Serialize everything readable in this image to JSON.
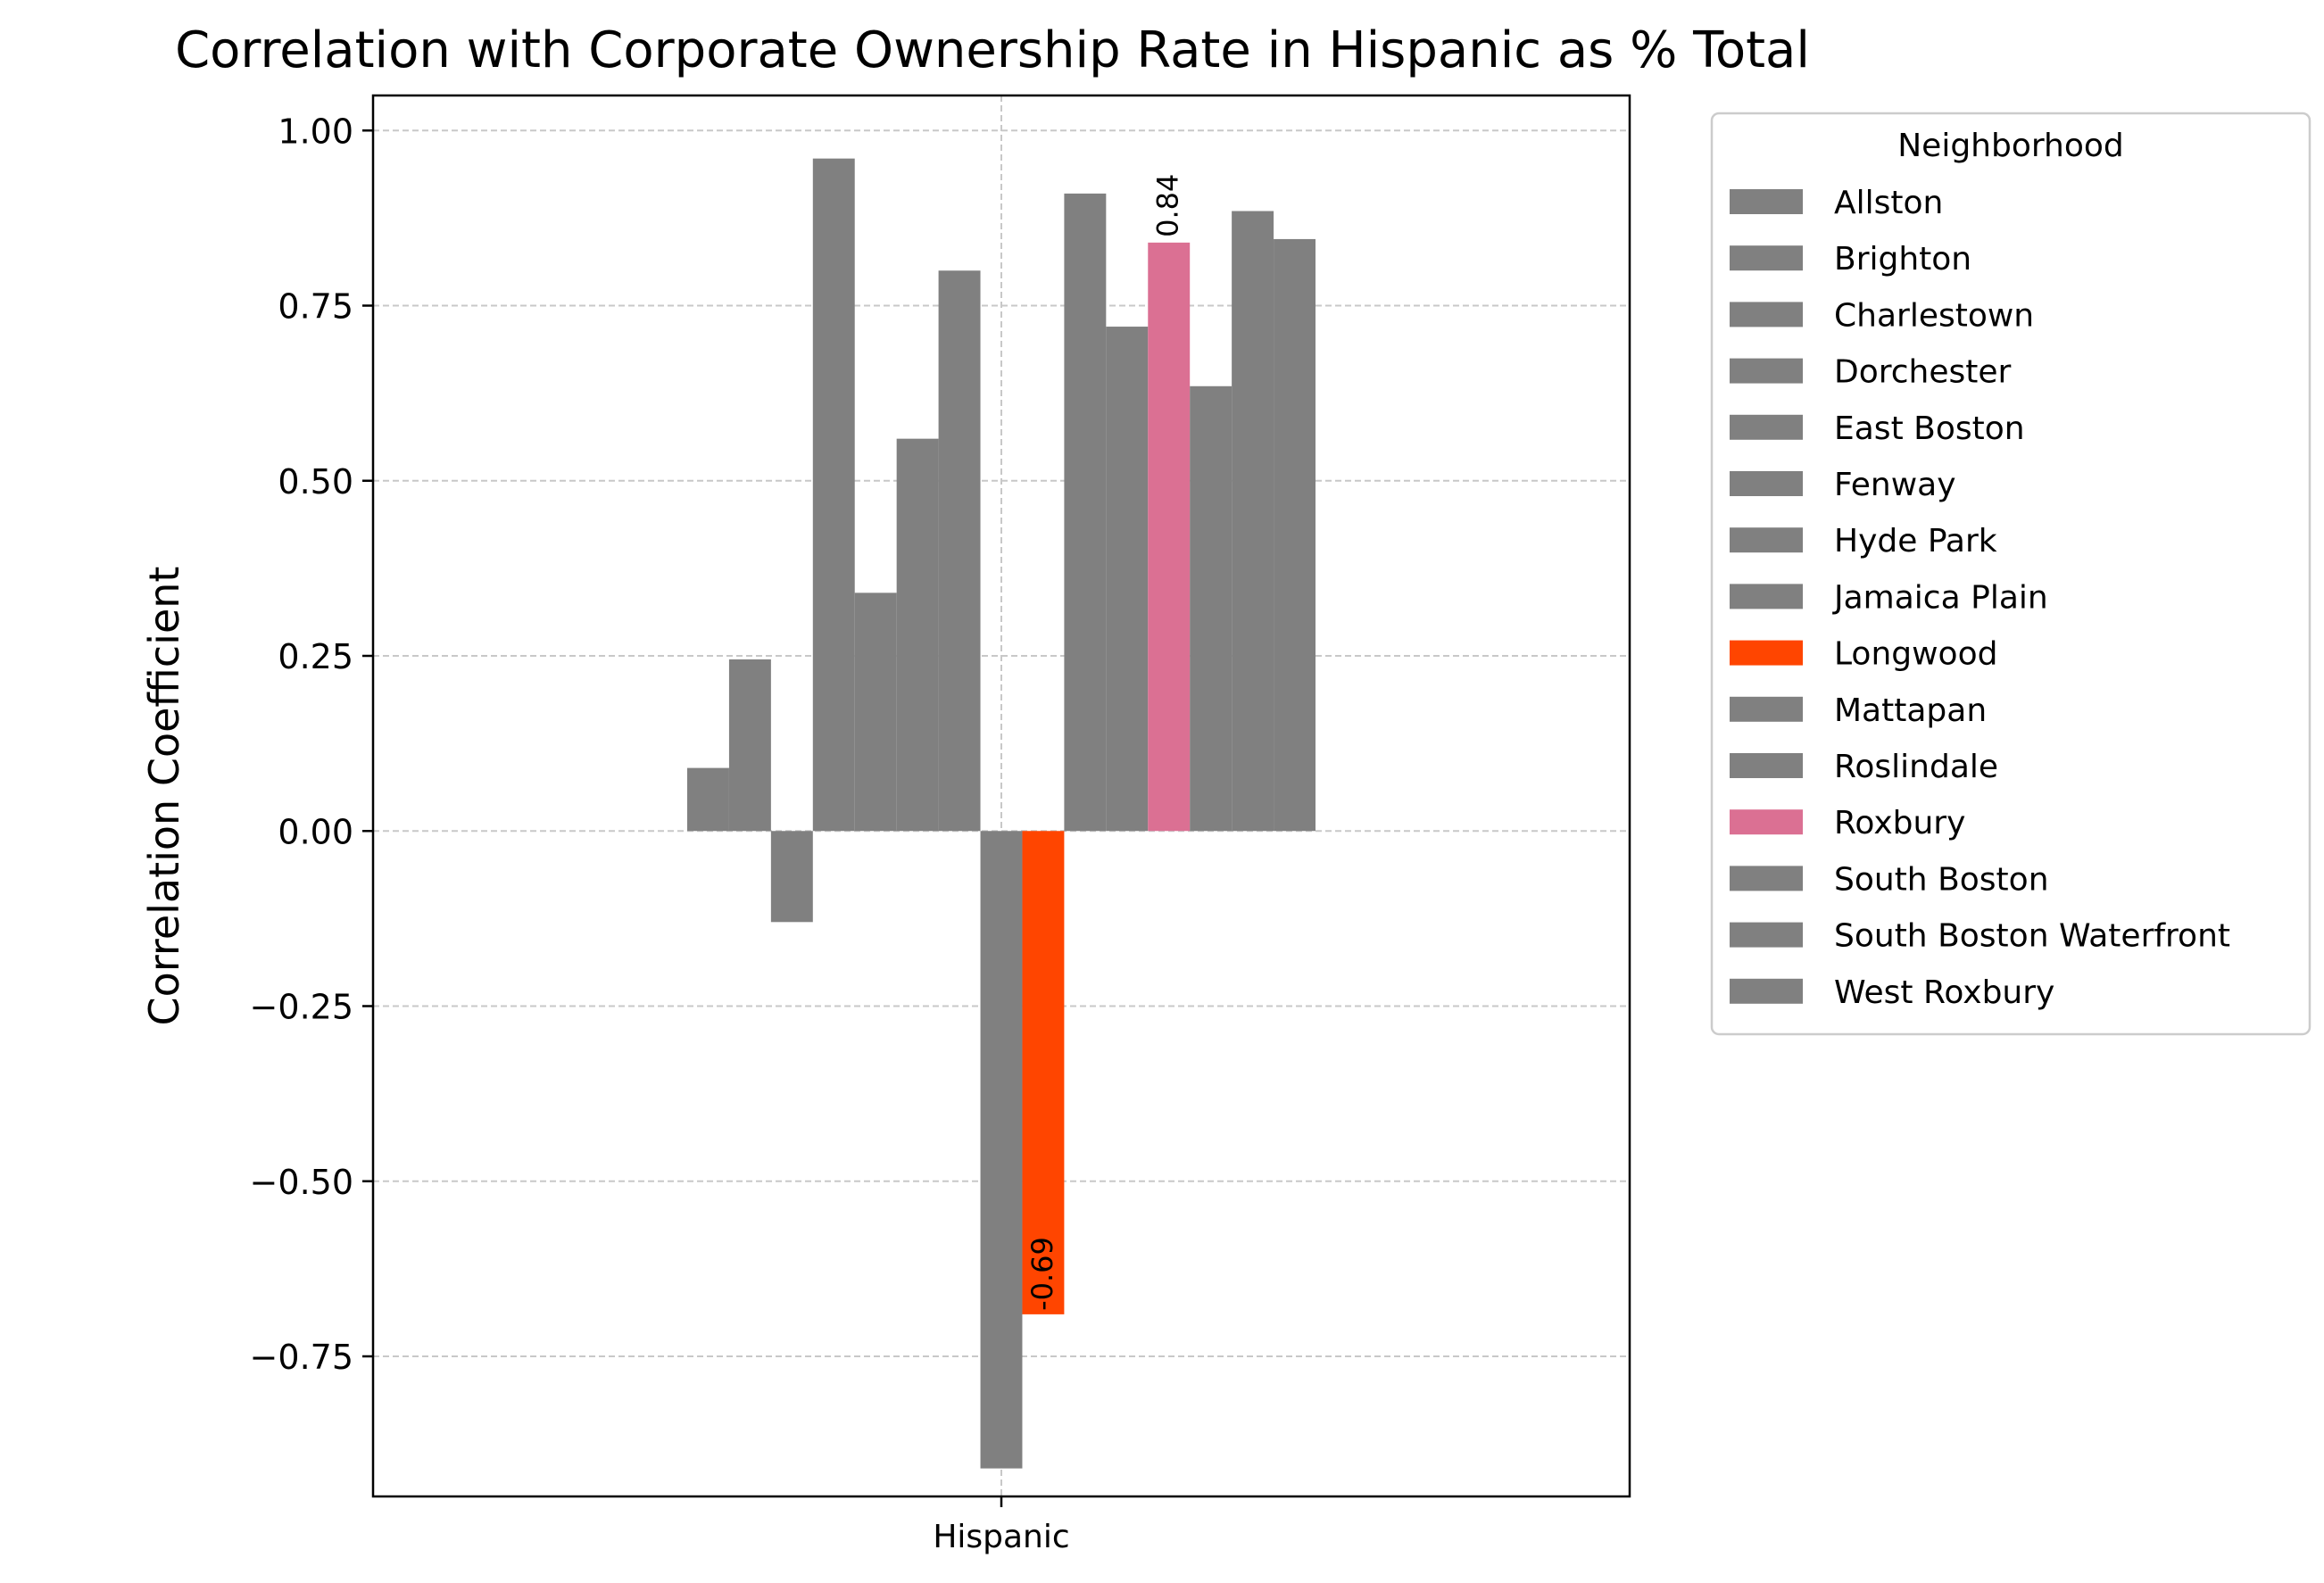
{
  "chart_data": {
    "type": "bar",
    "title": "Correlation with Corporate Ownership Rate in Hispanic as % Total",
    "xlabel": "",
    "ylabel": "Correlation Coefficient",
    "categories": [
      "Hispanic"
    ],
    "ylim": [
      -0.95,
      1.05
    ],
    "yticks": [
      -0.75,
      -0.5,
      -0.25,
      0.0,
      0.25,
      0.5,
      0.75,
      1.0
    ],
    "ytick_labels": [
      "−0.75",
      "−0.50",
      "−0.25",
      "0.00",
      "0.25",
      "0.50",
      "0.75",
      "1.00"
    ],
    "grid": true,
    "legend": {
      "title": "Neighborhood",
      "placement": "outside right, top"
    },
    "series": [
      {
        "name": "Allston",
        "values": [
          0.09
        ],
        "color": "#808080"
      },
      {
        "name": "Brighton",
        "values": [
          0.245
        ],
        "color": "#808080"
      },
      {
        "name": "Charlestown",
        "values": [
          -0.13
        ],
        "color": "#808080"
      },
      {
        "name": "Dorchester",
        "values": [
          0.96
        ],
        "color": "#808080"
      },
      {
        "name": "East Boston",
        "values": [
          0.34
        ],
        "color": "#808080"
      },
      {
        "name": "Fenway",
        "values": [
          0.56
        ],
        "color": "#808080"
      },
      {
        "name": "Hyde Park",
        "values": [
          0.8
        ],
        "color": "#808080"
      },
      {
        "name": "Jamaica Plain",
        "values": [
          -0.91
        ],
        "color": "#808080"
      },
      {
        "name": "Longwood",
        "values": [
          -0.69
        ],
        "color": "#ff4500",
        "data_label": "-0.69"
      },
      {
        "name": "Mattapan",
        "values": [
          0.91
        ],
        "color": "#808080"
      },
      {
        "name": "Roslindale",
        "values": [
          0.72
        ],
        "color": "#808080"
      },
      {
        "name": "Roxbury",
        "values": [
          0.84
        ],
        "color": "#db7093",
        "data_label": "0.84"
      },
      {
        "name": "South Boston",
        "values": [
          0.635
        ],
        "color": "#808080"
      },
      {
        "name": "South Boston Waterfront",
        "values": [
          0.885
        ],
        "color": "#808080"
      },
      {
        "name": "West Roxbury",
        "values": [
          0.845
        ],
        "color": "#808080"
      }
    ]
  }
}
